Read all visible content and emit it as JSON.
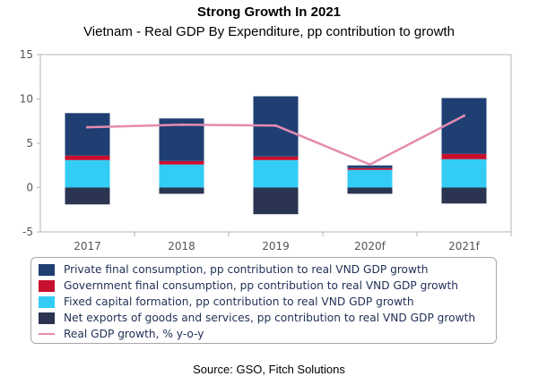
{
  "header": {
    "title": "Strong Growth In 2021",
    "subtitle": "Vietnam - Real GDP By Expenditure, pp contribution to growth"
  },
  "chart_data": {
    "type": "bar",
    "stacked": true,
    "categories": [
      "2017",
      "2018",
      "2019",
      "2020f",
      "2021f"
    ],
    "ylim": [
      -5,
      15
    ],
    "yticks": [
      -5,
      0,
      5,
      10,
      15
    ],
    "grid": false,
    "legend_position": "bottom",
    "series": [
      {
        "name": "Private final consumption, pp contribution to real VND GDP growth",
        "kind": "bar",
        "color": "#1f3f73",
        "values": [
          4.8,
          4.8,
          6.8,
          0.3,
          6.3
        ]
      },
      {
        "name": "Government final consumption, pp contribution to real VND GDP growth",
        "kind": "bar",
        "color": "#c8102e",
        "values": [
          0.5,
          0.4,
          0.4,
          0.2,
          0.6
        ]
      },
      {
        "name": "Fixed capital formation, pp contribution to real VND GDP growth",
        "kind": "bar",
        "color": "#33ccf5",
        "values": [
          3.1,
          2.6,
          3.1,
          2.0,
          3.2
        ]
      },
      {
        "name": "Net exports of goods and services, pp contribution to real VND GDP growth",
        "kind": "bar",
        "color": "#2b3450",
        "values": [
          -1.9,
          -0.7,
          -3.0,
          -0.7,
          -1.8
        ]
      },
      {
        "name": "Real GDP growth, % y-o-y",
        "kind": "line",
        "color": "#e58bb0",
        "values": [
          6.8,
          7.1,
          7.0,
          2.6,
          8.1
        ]
      }
    ]
  },
  "footer": {
    "source": "Source: GSO, Fitch Solutions"
  }
}
